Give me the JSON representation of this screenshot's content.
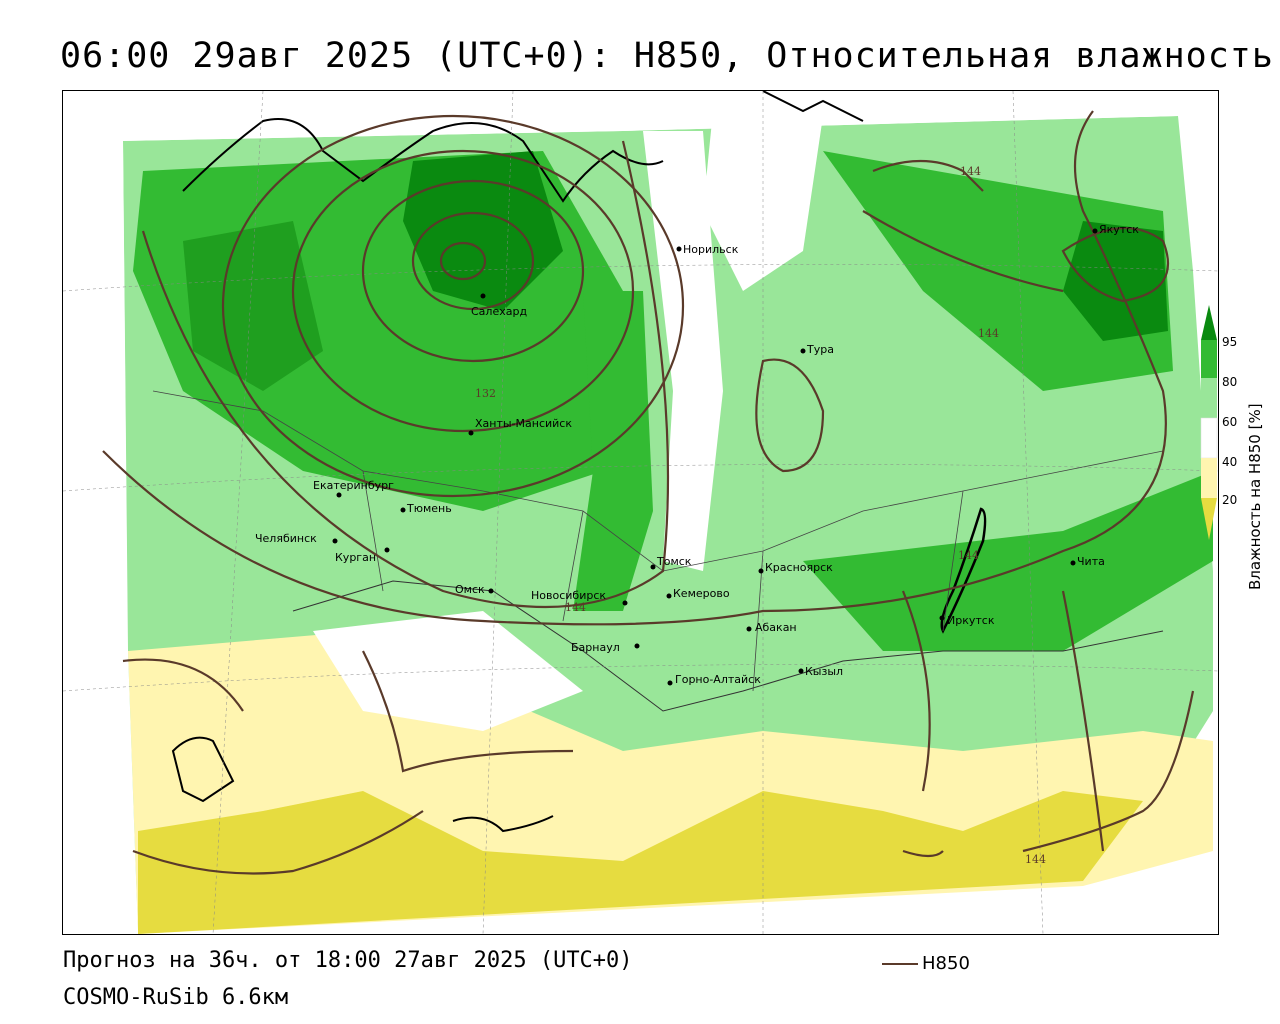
{
  "title": "06:00 29авг 2025 (UTC+0): H850, Относительная влажность",
  "footer": {
    "forecast": "Прогноз на 36ч. от 18:00 27авг 2025 (UTC+0)",
    "model": "COSMO-RuSib 6.6км"
  },
  "legend": {
    "contour_label": "H850",
    "colorbar_title": "Влажность на H850 [%]",
    "ticks": [
      "95",
      "80",
      "60",
      "40",
      "20"
    ]
  },
  "colors": {
    "rh_95": "#0a8a10",
    "rh_80": "#33bb33",
    "rh_60": "#99e699",
    "rh_40_60": "#ffffff",
    "rh_20_40": "#fff5b0",
    "rh_below_20": "#e6dc40",
    "contour": "#5a3a2a"
  },
  "cities": [
    {
      "name": "Норильск"
    },
    {
      "name": "Якутск"
    },
    {
      "name": "Салехард"
    },
    {
      "name": "Тура"
    },
    {
      "name": "Ханты-Мансийск"
    },
    {
      "name": "Екатеринбург"
    },
    {
      "name": "Тюмень"
    },
    {
      "name": "Челябинск"
    },
    {
      "name": "Курган"
    },
    {
      "name": "Омск"
    },
    {
      "name": "Новосибирск"
    },
    {
      "name": "Томск"
    },
    {
      "name": "Кемерово"
    },
    {
      "name": "Красноярск"
    },
    {
      "name": "Абакан"
    },
    {
      "name": "Барнаул"
    },
    {
      "name": "Горно-Алтайск"
    },
    {
      "name": "Кызыл"
    },
    {
      "name": "Иркутск"
    },
    {
      "name": "Чита"
    }
  ],
  "contour_labels": [
    "132",
    "144",
    "144",
    "144",
    "144",
    "144"
  ]
}
